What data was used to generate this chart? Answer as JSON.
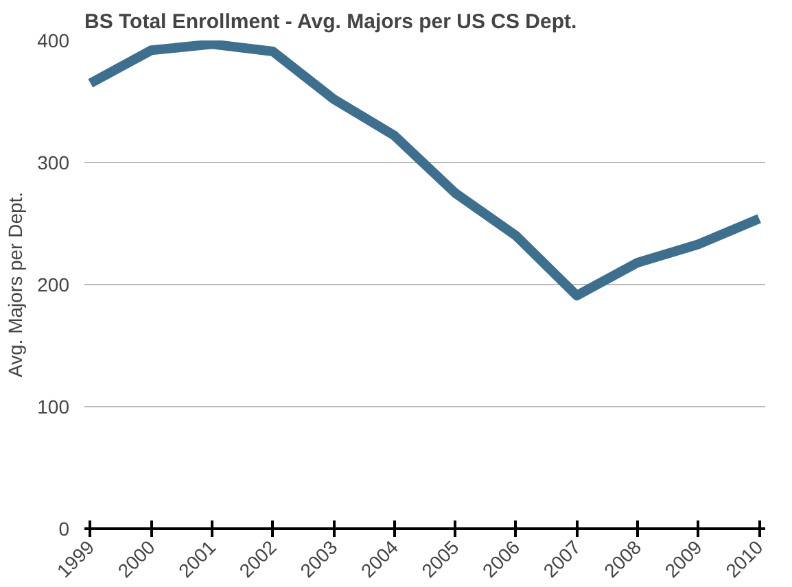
{
  "chart_data": {
    "type": "line",
    "title": "BS Total Enrollment - Avg. Majors per US CS Dept.",
    "ylabel": "Avg. Majors per Dept.",
    "categories": [
      "1999",
      "2000",
      "2001",
      "2002",
      "2003",
      "2004",
      "2005",
      "2006",
      "2007",
      "2008",
      "2009",
      "2010"
    ],
    "series": [
      {
        "color": "#3d6f8e",
        "values": [
          365,
          392,
          397,
          391,
          352,
          322,
          275,
          240,
          191,
          218,
          233,
          254
        ]
      }
    ],
    "ylim": [
      0,
      400
    ],
    "yticks": [
      0,
      100,
      200,
      300,
      400
    ],
    "grid": "y",
    "line_style": "solid"
  }
}
